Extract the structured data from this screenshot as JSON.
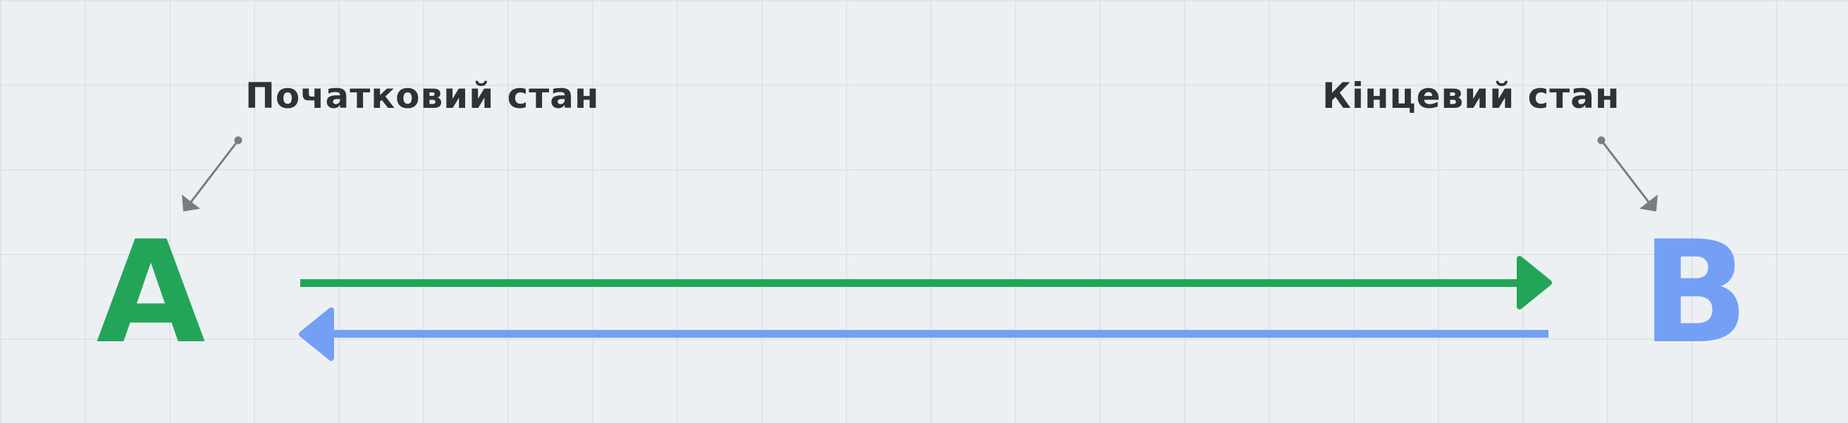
{
  "labels": {
    "start": "Початковий стан",
    "end": "Кінцевий стан"
  },
  "nodes": {
    "a": "A",
    "b": "B"
  },
  "colors": {
    "background": "#edf0f3",
    "grid": "#dfe4e9",
    "label": "#2e3135",
    "pointer": "#7a7d80",
    "node_a": "#22a559",
    "node_b": "#73a0f4",
    "forward_arrow": "#22a559",
    "backward_arrow": "#73a0f4"
  }
}
